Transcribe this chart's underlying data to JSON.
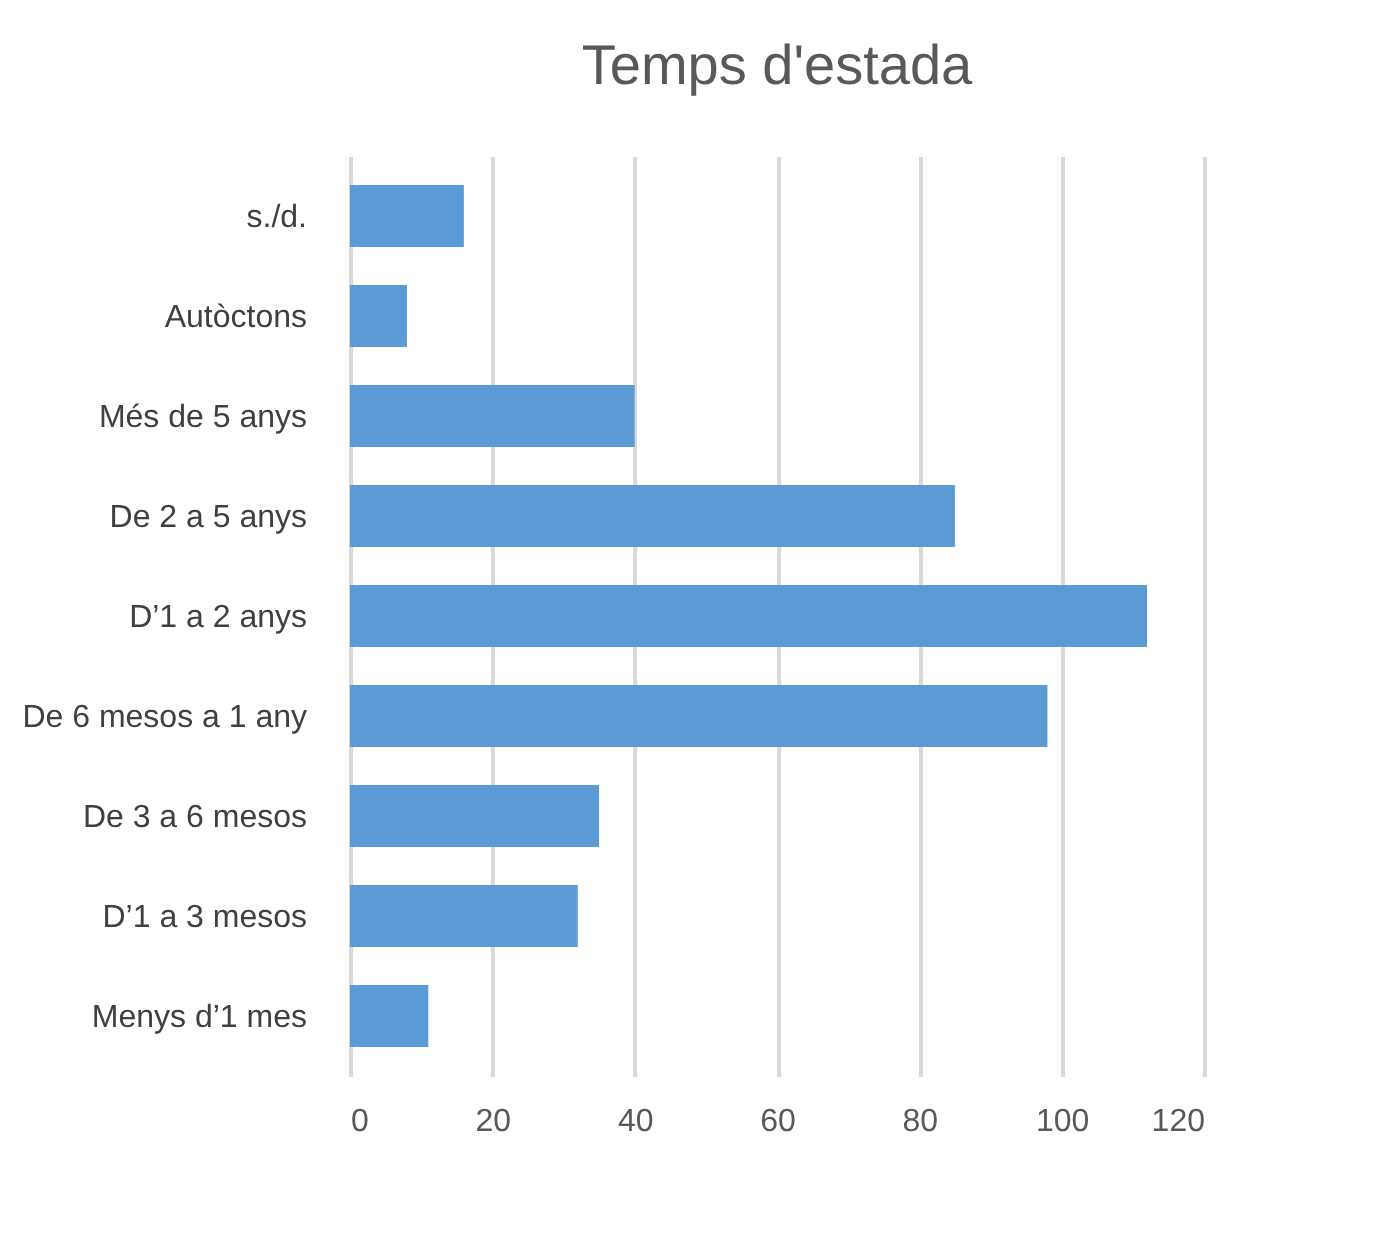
{
  "chart_data": {
    "type": "bar",
    "orientation": "horizontal",
    "title": "Temps d'estada",
    "categories": [
      "s./d.",
      "Autòctons",
      "Més de 5 anys",
      "De 2 a 5 anys",
      "D’1 a 2 anys",
      "De 6 mesos a 1 any",
      "De 3 a 6 mesos",
      "D’1 a 3 mesos",
      "Menys d’1 mes"
    ],
    "values": [
      16,
      8,
      40,
      85,
      112,
      98,
      35,
      32,
      11
    ],
    "color": "#5b9bd5",
    "xlim": [
      0,
      120
    ],
    "xticks": [
      0,
      20,
      40,
      60,
      80,
      100,
      120
    ],
    "grid": "x"
  }
}
